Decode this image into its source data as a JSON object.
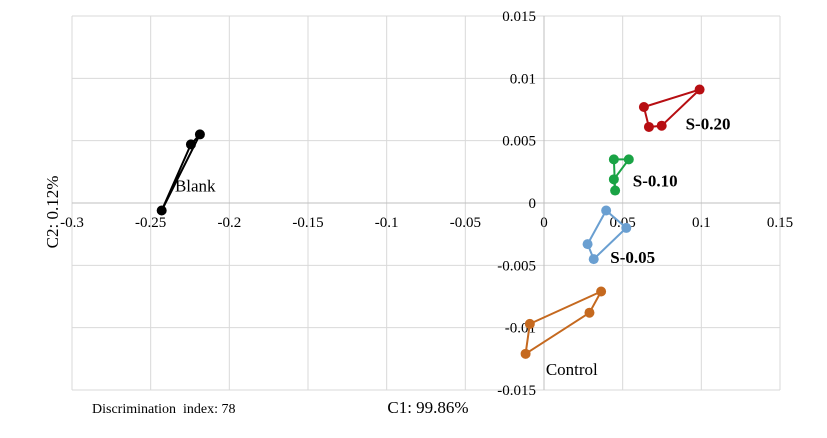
{
  "chart_data": {
    "type": "scatter",
    "title": "",
    "xlabel": "C1: 99.86%",
    "ylabel": "C2: 0.12%",
    "footnote": "Discrimination  index: 78",
    "xlim": [
      -0.3,
      0.15
    ],
    "ylim": [
      -0.015,
      0.015
    ],
    "x_ticks": [
      -0.3,
      -0.25,
      -0.2,
      -0.15,
      -0.1,
      -0.05,
      0,
      0.05,
      0.1,
      0.15
    ],
    "x_tick_labels": [
      "-0.3",
      "-0.25",
      "-0.2",
      "-0.15",
      "-0.1",
      "-0.05",
      "0",
      "0.05",
      "0.1",
      "0.15"
    ],
    "y_ticks": [
      -0.015,
      -0.01,
      -0.005,
      0,
      0.005,
      0.01,
      0.015
    ],
    "y_tick_labels": [
      "-0.015",
      "-0.01",
      "-0.005",
      "0",
      "0.005",
      "0.01",
      "0.015"
    ],
    "grid": true,
    "legend": "none",
    "series": [
      {
        "name": "Blank",
        "color": "#000000",
        "label_bold": false,
        "points": [
          {
            "x": -0.2187,
            "y": 0.0055
          },
          {
            "x": -0.2244,
            "y": 0.0047
          },
          {
            "x": -0.243,
            "y": -0.0006
          }
        ]
      },
      {
        "name": "S-0.20",
        "color": "#b70e12",
        "label_bold": true,
        "points": [
          {
            "x": 0.0989,
            "y": 0.0091
          },
          {
            "x": 0.0635,
            "y": 0.0077
          },
          {
            "x": 0.0667,
            "y": 0.0061
          },
          {
            "x": 0.0748,
            "y": 0.0062
          }
        ]
      },
      {
        "name": "S-0.10",
        "color": "#1aa345",
        "label_bold": true,
        "points": [
          {
            "x": 0.0444,
            "y": 0.0035
          },
          {
            "x": 0.0539,
            "y": 0.0035
          },
          {
            "x": 0.0444,
            "y": 0.0019
          },
          {
            "x": 0.0452,
            "y": 0.001
          }
        ]
      },
      {
        "name": "S-0.05",
        "color": "#6a9fd1",
        "label_bold": true,
        "points": [
          {
            "x": 0.0395,
            "y": -0.0006
          },
          {
            "x": 0.0523,
            "y": -0.002
          },
          {
            "x": 0.0316,
            "y": -0.0045
          },
          {
            "x": 0.0277,
            "y": -0.0033
          }
        ]
      },
      {
        "name": "Control",
        "color": "#c5691f",
        "label_bold": false,
        "points": [
          {
            "x": 0.0363,
            "y": -0.0071
          },
          {
            "x": 0.0289,
            "y": -0.0088
          },
          {
            "x": -0.0117,
            "y": -0.0121
          },
          {
            "x": -0.009,
            "y": -0.0097
          }
        ]
      }
    ]
  }
}
